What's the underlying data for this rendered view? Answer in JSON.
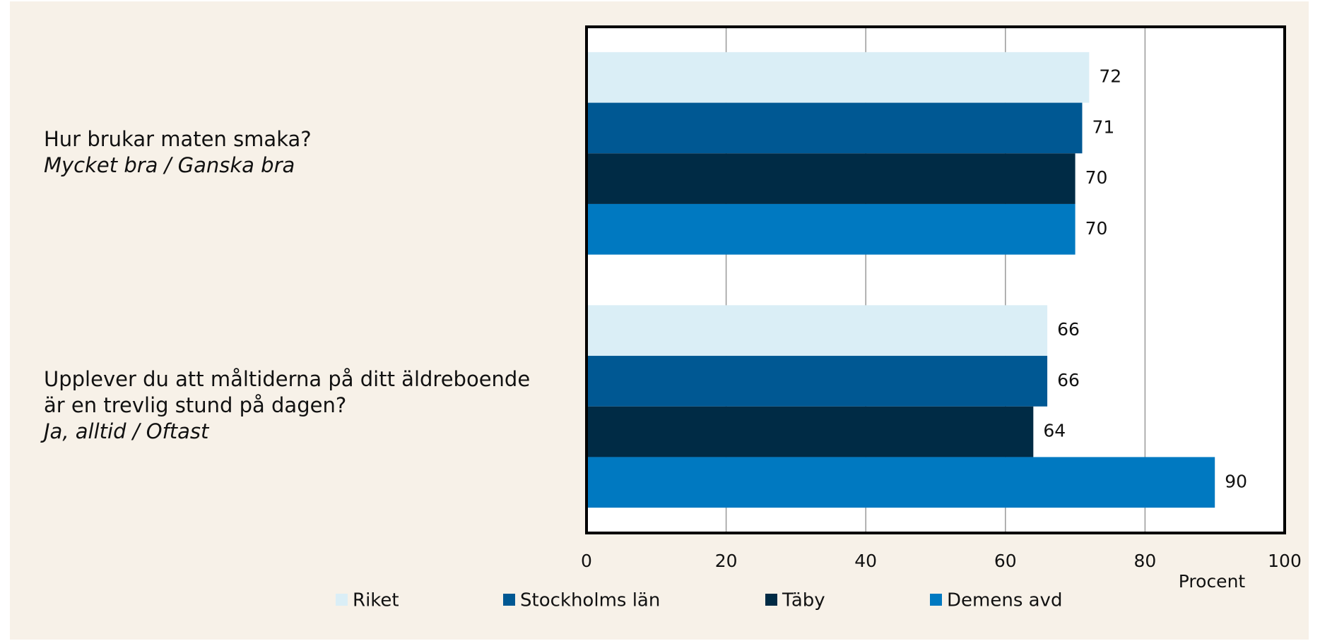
{
  "chart_data": {
    "type": "barh",
    "categories": [
      {
        "question": [
          "Hur brukar maten smaka?"
        ],
        "answer": "Mycket bra / Ganska bra"
      },
      {
        "question": [
          "Upplever du att måltiderna på ditt äldreboende",
          "är en trevlig stund på dagen?"
        ],
        "answer": "Ja, alltid / Oftast"
      }
    ],
    "series": [
      {
        "name": "Riket",
        "color": "#daeef6",
        "values": [
          72,
          66
        ]
      },
      {
        "name": "Stockholms län",
        "color": "#005893",
        "values": [
          71,
          66
        ]
      },
      {
        "name": "Täby",
        "color": "#002b45",
        "values": [
          70,
          64
        ]
      },
      {
        "name": "Demens avd",
        "color": "#0079c1",
        "values": [
          70,
          90
        ]
      }
    ],
    "xlabel": "Procent",
    "xlim": [
      0,
      100
    ],
    "xticks": [
      0,
      20,
      40,
      60,
      80,
      100
    ],
    "grid": true
  }
}
